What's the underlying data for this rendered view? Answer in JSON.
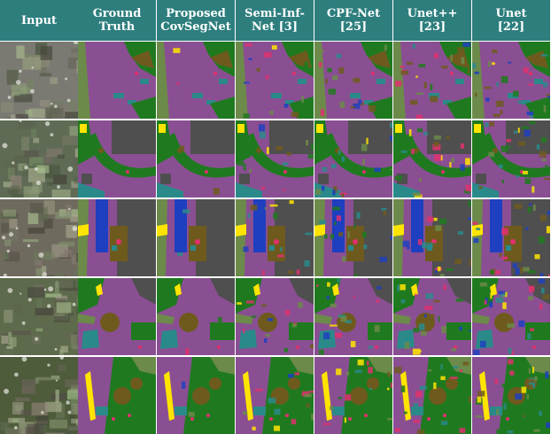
{
  "headers": [
    "Input",
    "Ground\nTruth",
    "Proposed\nCovSegNet",
    "Semi-Inf-\nNet [3]",
    "CPF-Net\n[25]",
    "Unet++\n[23]",
    "Unet\n[22]"
  ],
  "palette": {
    "header_bg": "#2e7e7e",
    "road_purple": "#8a4f92",
    "vegetation_green": "#1f7a1f",
    "tree_brown": "#6f5a1e",
    "building_gray": "#4f4f4f",
    "water_blue": "#1e3fbf",
    "car_pink": "#e0306e",
    "highlight_yellow": "#ffe400",
    "pavement_teal": "#2a8a8a",
    "ground_olive": "#6c8a4a"
  },
  "rows": 5,
  "columns": 7
}
